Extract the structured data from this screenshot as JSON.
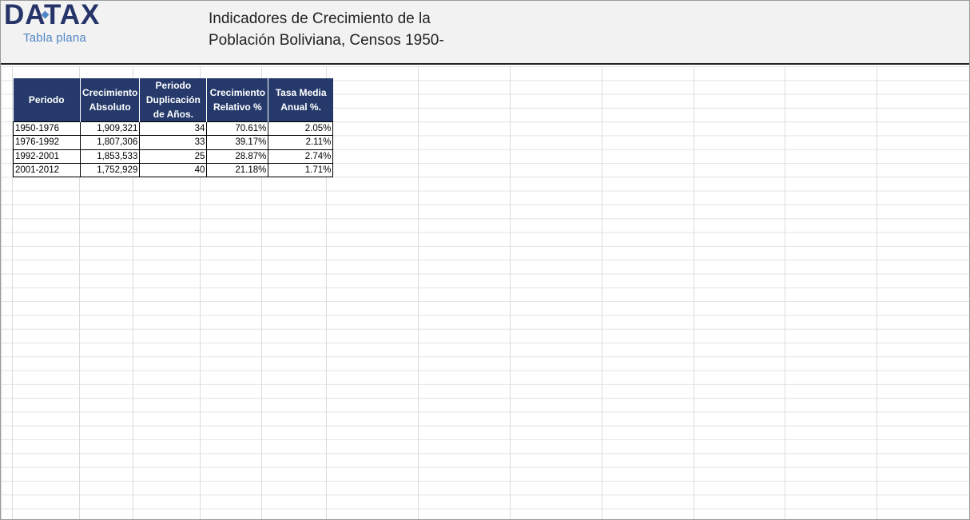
{
  "header": {
    "logo_text": "DATAX",
    "logo_subtitle": "Tabla plana",
    "title_line1": "Indicadores de Crecimiento de la",
    "title_line2": "Población Boliviana, Censos 1950-"
  },
  "colors": {
    "logo": "#26346a",
    "logo_accent": "#4f86c6",
    "table_header_bg": "#253a6b",
    "table_header_text": "#ffffff"
  },
  "table": {
    "headers": [
      "Periodo",
      "Crecimiento Absoluto",
      "Periodo Duplicación de Años.",
      "Crecimiento Relativo %",
      "Tasa Media Anual %."
    ],
    "rows": [
      [
        "1950-1976",
        "1,909,321",
        "34",
        "70.61%",
        "2.05%"
      ],
      [
        "1976-1992",
        "1,807,306",
        "33",
        "39.17%",
        "2.11%"
      ],
      [
        "1992-2001",
        "1,853,533",
        "25",
        "28.87%",
        "2.74%"
      ],
      [
        "2001-2012",
        "1,752,929",
        "40",
        "21.18%",
        "1.71%"
      ]
    ]
  }
}
